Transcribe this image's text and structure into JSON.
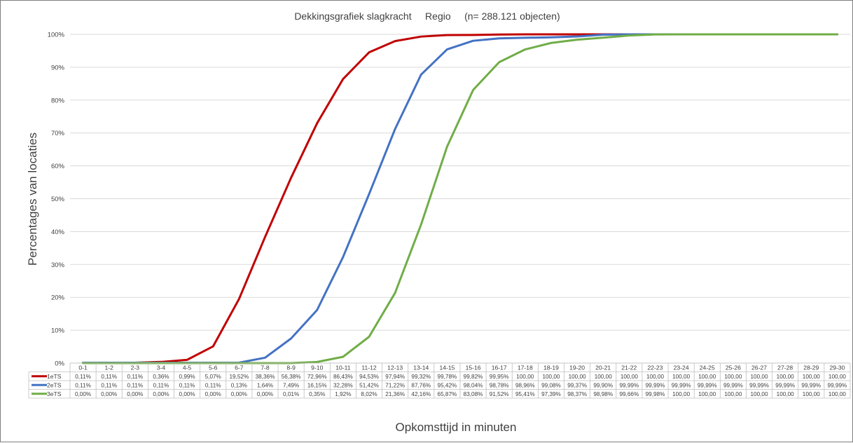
{
  "chart_data": {
    "type": "line",
    "title": "Dekkingsgrafiek slagkracht     Regio     (n= 288.121 objecten)",
    "xlabel": "Opkomsttijd in minuten",
    "ylabel": "Percentages van locaties",
    "ylim": [
      0,
      100
    ],
    "yticks": [
      "0%",
      "10%",
      "20%",
      "30%",
      "40%",
      "50%",
      "60%",
      "70%",
      "80%",
      "90%",
      "100%"
    ],
    "grid": true,
    "legend": "data-table",
    "categories": [
      "0-1",
      "1-2",
      "2-3",
      "3-4",
      "4-5",
      "5-6",
      "6-7",
      "7-8",
      "8-9",
      "9-10",
      "10-11",
      "11-12",
      "12-13",
      "13-14",
      "14-15",
      "15-16",
      "16-17",
      "17-18",
      "18-19",
      "19-20",
      "20-21",
      "21-22",
      "22-23",
      "23-24",
      "24-25",
      "25-26",
      "26-27",
      "27-28",
      "28-29",
      "29-30"
    ],
    "series": [
      {
        "name": "1eTS",
        "color": "#c00000",
        "values": [
          0.11,
          0.11,
          0.11,
          0.36,
          0.99,
          5.07,
          19.52,
          38.36,
          56.38,
          72.96,
          86.43,
          94.53,
          97.94,
          99.32,
          99.78,
          99.82,
          99.95,
          100,
          100,
          100,
          100,
          100,
          100,
          100,
          100,
          100,
          100,
          100,
          100,
          100
        ],
        "labels": [
          "0,11%",
          "0,11%",
          "0,11%",
          "0,36%",
          "0,99%",
          "5,07%",
          "19,52%",
          "38,36%",
          "56,38%",
          "72,96%",
          "86,43%",
          "94,53%",
          "97,94%",
          "99,32%",
          "99,78%",
          "99,82%",
          "99,95%",
          "100,00",
          "100,00",
          "100,00",
          "100,00",
          "100,00",
          "100,00",
          "100,00",
          "100,00",
          "100,00",
          "100,00",
          "100,00",
          "100,00",
          "100,00"
        ]
      },
      {
        "name": "2eTS",
        "color": "#4472c4",
        "values": [
          0.11,
          0.11,
          0.11,
          0.11,
          0.11,
          0.11,
          0.13,
          1.64,
          7.49,
          16.15,
          32.28,
          51.42,
          71.22,
          87.76,
          95.42,
          98.04,
          98.78,
          98.96,
          99.08,
          99.37,
          99.9,
          99.99,
          99.99,
          99.99,
          99.99,
          99.99,
          99.99,
          99.99,
          99.99,
          99.99
        ],
        "labels": [
          "0,11%",
          "0,11%",
          "0,11%",
          "0,11%",
          "0,11%",
          "0,11%",
          "0,13%",
          "1,64%",
          "7,49%",
          "16,15%",
          "32,28%",
          "51,42%",
          "71,22%",
          "87,76%",
          "95,42%",
          "98,04%",
          "98,78%",
          "98,96%",
          "99,08%",
          "99,37%",
          "99,90%",
          "99,99%",
          "99,99%",
          "99,99%",
          "99,99%",
          "99,99%",
          "99,99%",
          "99,99%",
          "99,99%",
          "99,99%"
        ]
      },
      {
        "name": "3eTS",
        "color": "#70ad47",
        "values": [
          0,
          0,
          0,
          0,
          0,
          0,
          0,
          0,
          0.01,
          0.35,
          1.92,
          8.02,
          21.36,
          42.16,
          65.87,
          83.08,
          91.52,
          95.41,
          97.39,
          98.37,
          98.98,
          99.66,
          99.98,
          100,
          100,
          100,
          100,
          100,
          100,
          100
        ],
        "labels": [
          "0,00%",
          "0,00%",
          "0,00%",
          "0,00%",
          "0,00%",
          "0,00%",
          "0,00%",
          "0,00%",
          "0,01%",
          "0,35%",
          "1,92%",
          "8,02%",
          "21,36%",
          "42,16%",
          "65,87%",
          "83,08%",
          "91,52%",
          "95,41%",
          "97,39%",
          "98,37%",
          "98,98%",
          "99,66%",
          "99,98%",
          "100,00",
          "100,00",
          "100,00",
          "100,00",
          "100,00",
          "100,00",
          "100,00"
        ]
      }
    ]
  }
}
